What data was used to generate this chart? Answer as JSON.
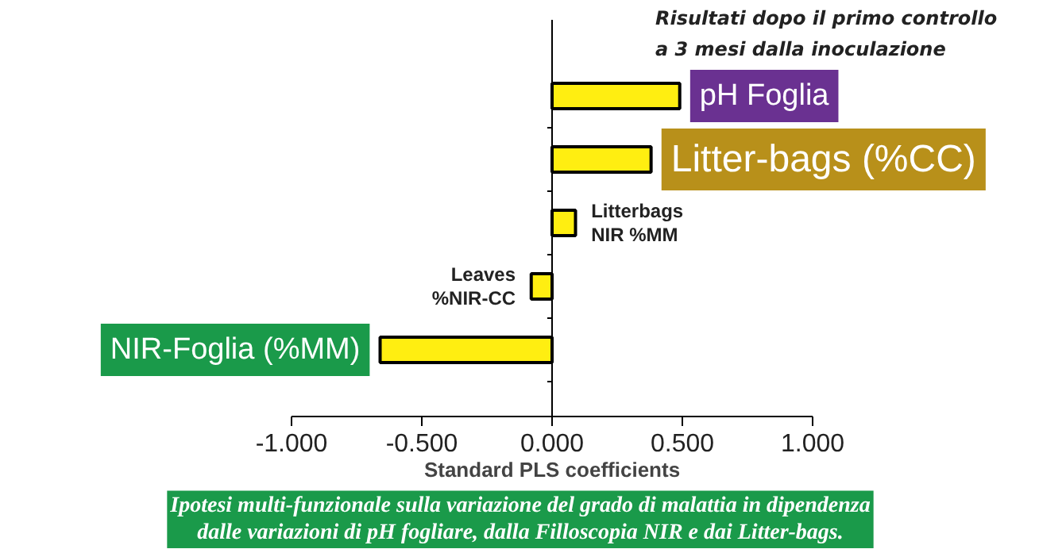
{
  "chart_data": {
    "type": "bar",
    "orientation": "horizontal",
    "title": "Risultati dopo il primo controllo\na  3 mesi dalla inoculazione",
    "xlabel": "Standard PLS coefficients",
    "categories": [
      "pH Foglia",
      "Litter-bags (%CC)",
      "Litterbags\nNIR %MM",
      "Leaves\n%NIR-CC",
      "NIR-Foglia (%MM)"
    ],
    "values": [
      0.49,
      0.38,
      0.09,
      -0.08,
      -0.66
    ],
    "color": "#ffee11",
    "xlim": [
      -1,
      1
    ],
    "xticks": [
      {
        "value": -1,
        "label": "-1.000"
      },
      {
        "value": -0.5,
        "label": "-0.500"
      },
      {
        "value": 0,
        "label": "0.000"
      },
      {
        "value": 0.5,
        "label": "0.500"
      },
      {
        "value": 1,
        "label": "1.000"
      }
    ],
    "annotations": [
      "Ipotesi multi-funzionale sulla variazione del grado di malattia in dipendenza\ndalle variazioni di pH fogliare, dalla Filloscopia NIR e dai Litter-bags."
    ]
  }
}
